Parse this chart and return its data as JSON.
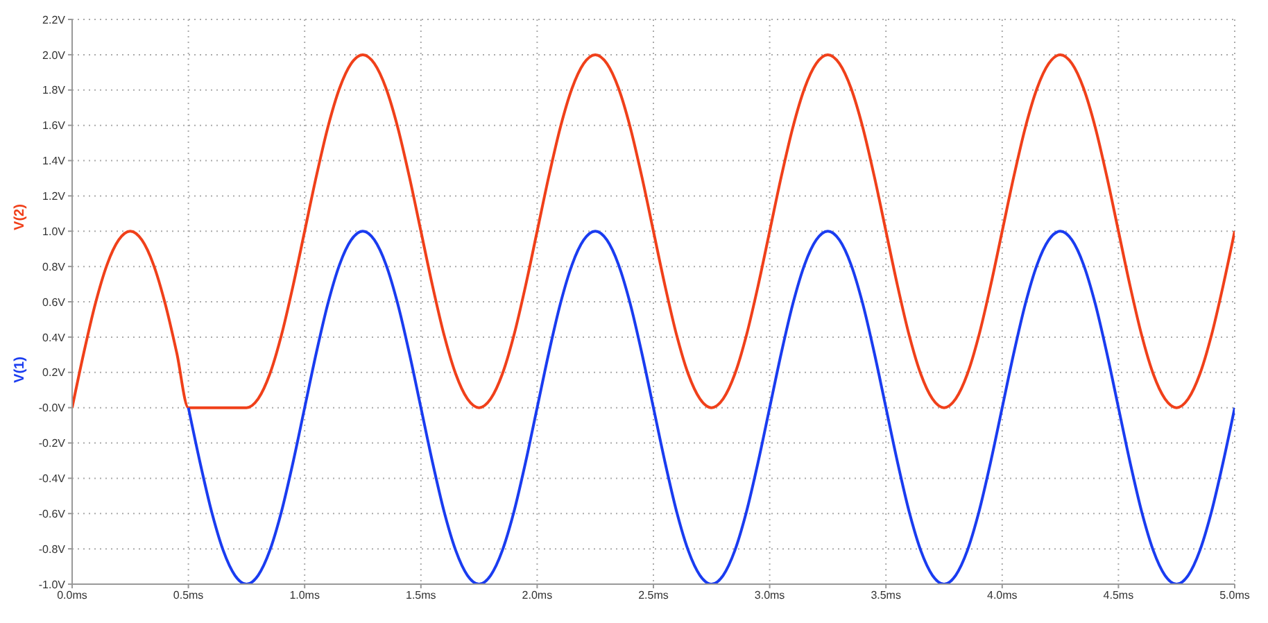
{
  "chart_data": {
    "type": "line",
    "x": [
      0,
      0.05,
      0.1,
      0.15,
      0.2,
      0.25,
      0.3,
      0.35,
      0.4,
      0.45,
      0.5,
      0.55,
      0.6,
      0.65,
      0.7,
      0.75,
      0.8,
      0.85,
      0.9,
      0.95,
      1,
      1.05,
      1.1,
      1.15,
      1.2,
      1.25,
      1.3,
      1.35,
      1.4,
      1.45,
      1.5,
      1.55,
      1.6,
      1.65,
      1.7,
      1.75,
      1.8,
      1.85,
      1.9,
      1.95,
      2,
      2.05,
      2.1,
      2.15,
      2.2,
      2.25,
      2.3,
      2.35,
      2.4,
      2.45,
      2.5,
      2.55,
      2.6,
      2.65,
      2.7,
      2.75,
      2.8,
      2.85,
      2.9,
      2.95,
      3,
      3.05,
      3.1,
      3.15,
      3.2,
      3.25,
      3.3,
      3.35,
      3.4,
      3.45,
      3.5,
      3.55,
      3.6,
      3.65,
      3.7,
      3.75,
      3.8,
      3.85,
      3.9,
      3.95,
      4,
      4.05,
      4.1,
      4.15,
      4.2,
      4.25,
      4.3,
      4.35,
      4.4,
      4.45,
      4.5,
      4.55,
      4.6,
      4.65,
      4.7,
      4.75,
      4.8,
      4.85,
      4.9,
      4.95,
      5
    ],
    "series": [
      {
        "name": "V(2)",
        "color": "#f0401a",
        "values": [
          0,
          0.31,
          0.59,
          0.81,
          0.95,
          1,
          0.95,
          0.81,
          0.59,
          0.31,
          0,
          0,
          0,
          0,
          0,
          0,
          0.05,
          0.19,
          0.41,
          0.69,
          1,
          1.31,
          1.59,
          1.81,
          1.95,
          2,
          1.95,
          1.81,
          1.59,
          1.31,
          1,
          0.69,
          0.41,
          0.19,
          0.05,
          0,
          0.05,
          0.19,
          0.41,
          0.69,
          1,
          1.31,
          1.59,
          1.81,
          1.95,
          2,
          1.95,
          1.81,
          1.59,
          1.31,
          1,
          0.69,
          0.41,
          0.19,
          0.05,
          0,
          0.05,
          0.19,
          0.41,
          0.69,
          1,
          1.31,
          1.59,
          1.81,
          1.95,
          2,
          1.95,
          1.81,
          1.59,
          1.31,
          1,
          0.69,
          0.41,
          0.19,
          0.05,
          0,
          0.05,
          0.19,
          0.41,
          0.69,
          1,
          1.31,
          1.59,
          1.81,
          1.95,
          2,
          1.95,
          1.81,
          1.59,
          1.31,
          1,
          0.69,
          0.41,
          0.19,
          0.05,
          0,
          0.05,
          0.19,
          0.41,
          0.69,
          1
        ]
      },
      {
        "name": "V(1)",
        "color": "#1a3cf0",
        "values": [
          null,
          null,
          null,
          null,
          null,
          null,
          null,
          null,
          null,
          null,
          0,
          -0.31,
          -0.59,
          -0.81,
          -0.95,
          -1,
          -0.95,
          -0.81,
          -0.59,
          -0.31,
          0,
          0.31,
          0.59,
          0.81,
          0.95,
          1,
          0.95,
          0.81,
          0.59,
          0.31,
          0,
          -0.31,
          -0.59,
          -0.81,
          -0.95,
          -1,
          -0.95,
          -0.81,
          -0.59,
          -0.31,
          0,
          0.31,
          0.59,
          0.81,
          0.95,
          1,
          0.95,
          0.81,
          0.59,
          0.31,
          0,
          -0.31,
          -0.59,
          -0.81,
          -0.95,
          -1,
          -0.95,
          -0.81,
          -0.59,
          -0.31,
          0,
          0.31,
          0.59,
          0.81,
          0.95,
          1,
          0.95,
          0.81,
          0.59,
          0.31,
          0,
          -0.31,
          -0.59,
          -0.81,
          -0.95,
          -1,
          -0.95,
          -0.81,
          -0.59,
          -0.31,
          0,
          0.31,
          0.59,
          0.81,
          0.95,
          1,
          0.95,
          0.81,
          0.59,
          0.31,
          0,
          -0.31,
          -0.59,
          -0.81,
          -0.95,
          -1,
          -0.95,
          -0.81,
          -0.59,
          -0.31,
          0
        ]
      }
    ],
    "xlim": [
      0,
      5
    ],
    "xticks": [
      {
        "value": 0,
        "label": "0.0ms"
      },
      {
        "value": 0.5,
        "label": "0.5ms"
      },
      {
        "value": 1,
        "label": "1.0ms"
      },
      {
        "value": 1.5,
        "label": "1.5ms"
      },
      {
        "value": 2,
        "label": "2.0ms"
      },
      {
        "value": 2.5,
        "label": "2.5ms"
      },
      {
        "value": 3,
        "label": "3.0ms"
      },
      {
        "value": 3.5,
        "label": "3.5ms"
      },
      {
        "value": 4,
        "label": "4.0ms"
      },
      {
        "value": 4.5,
        "label": "4.5ms"
      },
      {
        "value": 5,
        "label": "5.0ms"
      }
    ],
    "ylim": [
      -1,
      2.2
    ],
    "yticks": [
      {
        "value": -1,
        "label": "-1.0V"
      },
      {
        "value": -0.8,
        "label": "-0.8V"
      },
      {
        "value": -0.6,
        "label": "-0.6V"
      },
      {
        "value": -0.4,
        "label": "-0.4V"
      },
      {
        "value": -0.2,
        "label": "-0.2V"
      },
      {
        "value": 0,
        "label": "-0.0V"
      },
      {
        "value": 0.2,
        "label": "0.2V"
      },
      {
        "value": 0.4,
        "label": "0.4V"
      },
      {
        "value": 0.6,
        "label": "0.6V"
      },
      {
        "value": 0.8,
        "label": "0.8V"
      },
      {
        "value": 1,
        "label": "1.0V"
      },
      {
        "value": 1.2,
        "label": "1.2V"
      },
      {
        "value": 1.4,
        "label": "1.4V"
      },
      {
        "value": 1.6,
        "label": "1.6V"
      },
      {
        "value": 1.8,
        "label": "1.8V"
      },
      {
        "value": 2,
        "label": "2.0V"
      },
      {
        "value": 2.2,
        "label": "2.2V"
      }
    ],
    "grid": true,
    "marker": "none",
    "line_style": "solid",
    "legend": false
  }
}
